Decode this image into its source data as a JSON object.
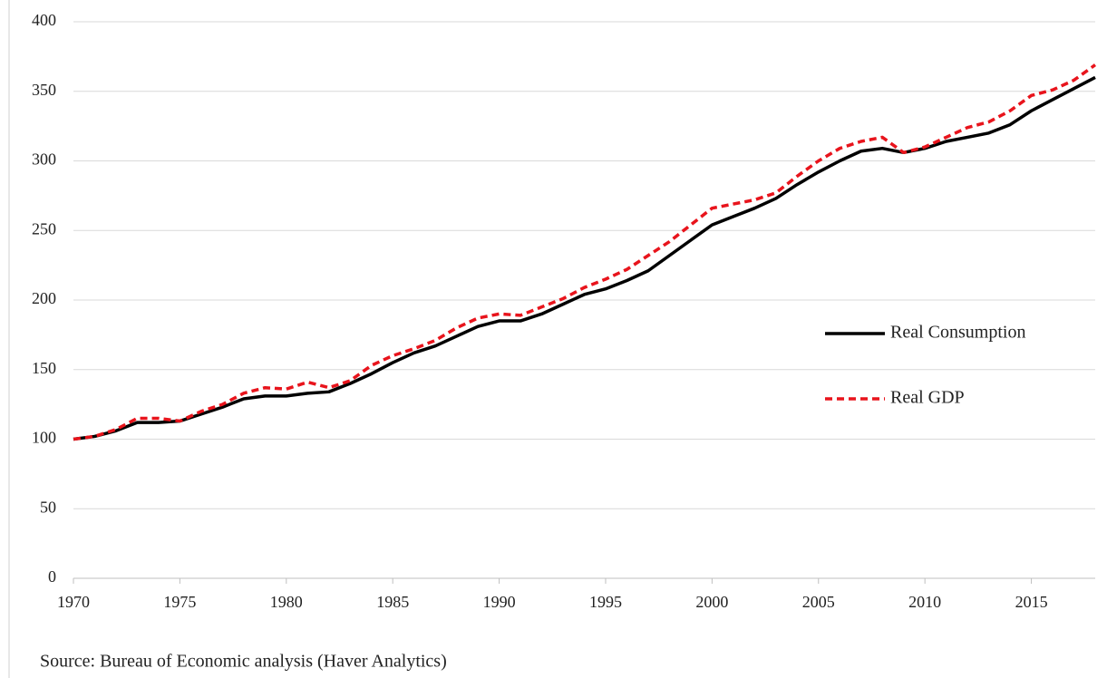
{
  "chart_data": {
    "type": "line",
    "source": "Source: Bureau of Economic analysis (Haver Analytics)",
    "x": [
      1970,
      1971,
      1972,
      1973,
      1974,
      1975,
      1976,
      1977,
      1978,
      1979,
      1980,
      1981,
      1982,
      1983,
      1984,
      1985,
      1986,
      1987,
      1988,
      1989,
      1990,
      1991,
      1992,
      1993,
      1994,
      1995,
      1996,
      1997,
      1998,
      1999,
      2000,
      2001,
      2002,
      2003,
      2004,
      2005,
      2006,
      2007,
      2008,
      2009,
      2010,
      2011,
      2012,
      2013,
      2014,
      2015,
      2016,
      2017,
      2018
    ],
    "series": [
      {
        "name": "Real Consumption",
        "color": "#000000",
        "dash": false,
        "values": [
          100,
          102,
          106,
          112,
          112,
          113,
          118,
          123,
          129,
          131,
          131,
          133,
          134,
          140,
          147,
          155,
          162,
          167,
          174,
          181,
          185,
          185,
          190,
          197,
          204,
          208,
          214,
          221,
          232,
          243,
          254,
          260,
          266,
          273,
          283,
          292,
          300,
          307,
          309,
          306,
          309,
          314,
          317,
          320,
          326,
          336,
          344,
          352,
          360
        ]
      },
      {
        "name": "Real GDP",
        "color": "#e8141c",
        "dash": true,
        "values": [
          100,
          102,
          107,
          115,
          115,
          113,
          120,
          125,
          133,
          137,
          136,
          141,
          137,
          142,
          153,
          160,
          165,
          171,
          180,
          187,
          190,
          189,
          195,
          201,
          209,
          215,
          222,
          232,
          242,
          254,
          266,
          269,
          272,
          277,
          289,
          300,
          309,
          314,
          317,
          306,
          310,
          317,
          324,
          328,
          336,
          347,
          351,
          358,
          369
        ]
      }
    ],
    "xlim": [
      1970,
      2018
    ],
    "xticks": [
      1970,
      1975,
      1980,
      1985,
      1990,
      1995,
      2000,
      2005,
      2010,
      2015
    ],
    "ylim": [
      0,
      400
    ],
    "yticks": [
      0,
      50,
      100,
      150,
      200,
      250,
      300,
      350,
      400
    ],
    "grid": true,
    "legend": "right"
  }
}
